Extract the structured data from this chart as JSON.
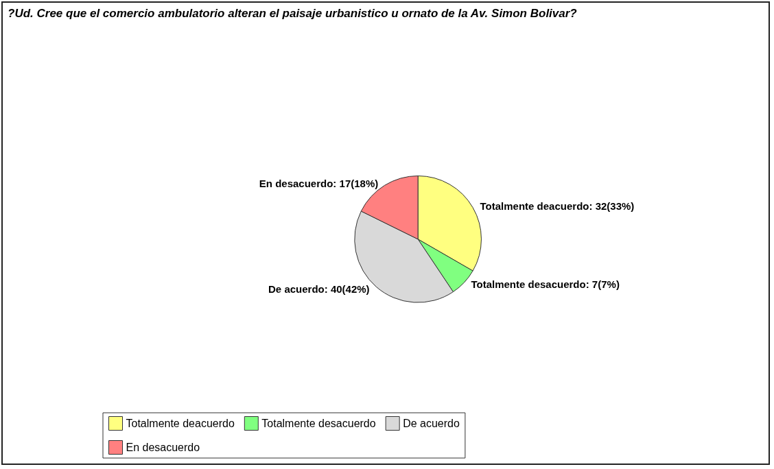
{
  "chart_data": {
    "type": "pie",
    "title": "?Ud. Cree que el comercio ambulatorio alteran el paisaje urbanistico u ornato de la Av. Simon Bolivar?",
    "categories": [
      "Totalmente deacuerdo",
      "Totalmente desacuerdo",
      "De acuerdo",
      "En desacuerdo"
    ],
    "values": [
      32,
      7,
      40,
      17
    ],
    "value_labels": [
      ": 32(33%)",
      ": 7(7%)",
      ": 40(42%)",
      ": 17(18%)"
    ],
    "colors": [
      "#ffff80",
      "#80ff80",
      "#d9d9d9",
      "#ff8080"
    ],
    "legend": "bottom"
  }
}
